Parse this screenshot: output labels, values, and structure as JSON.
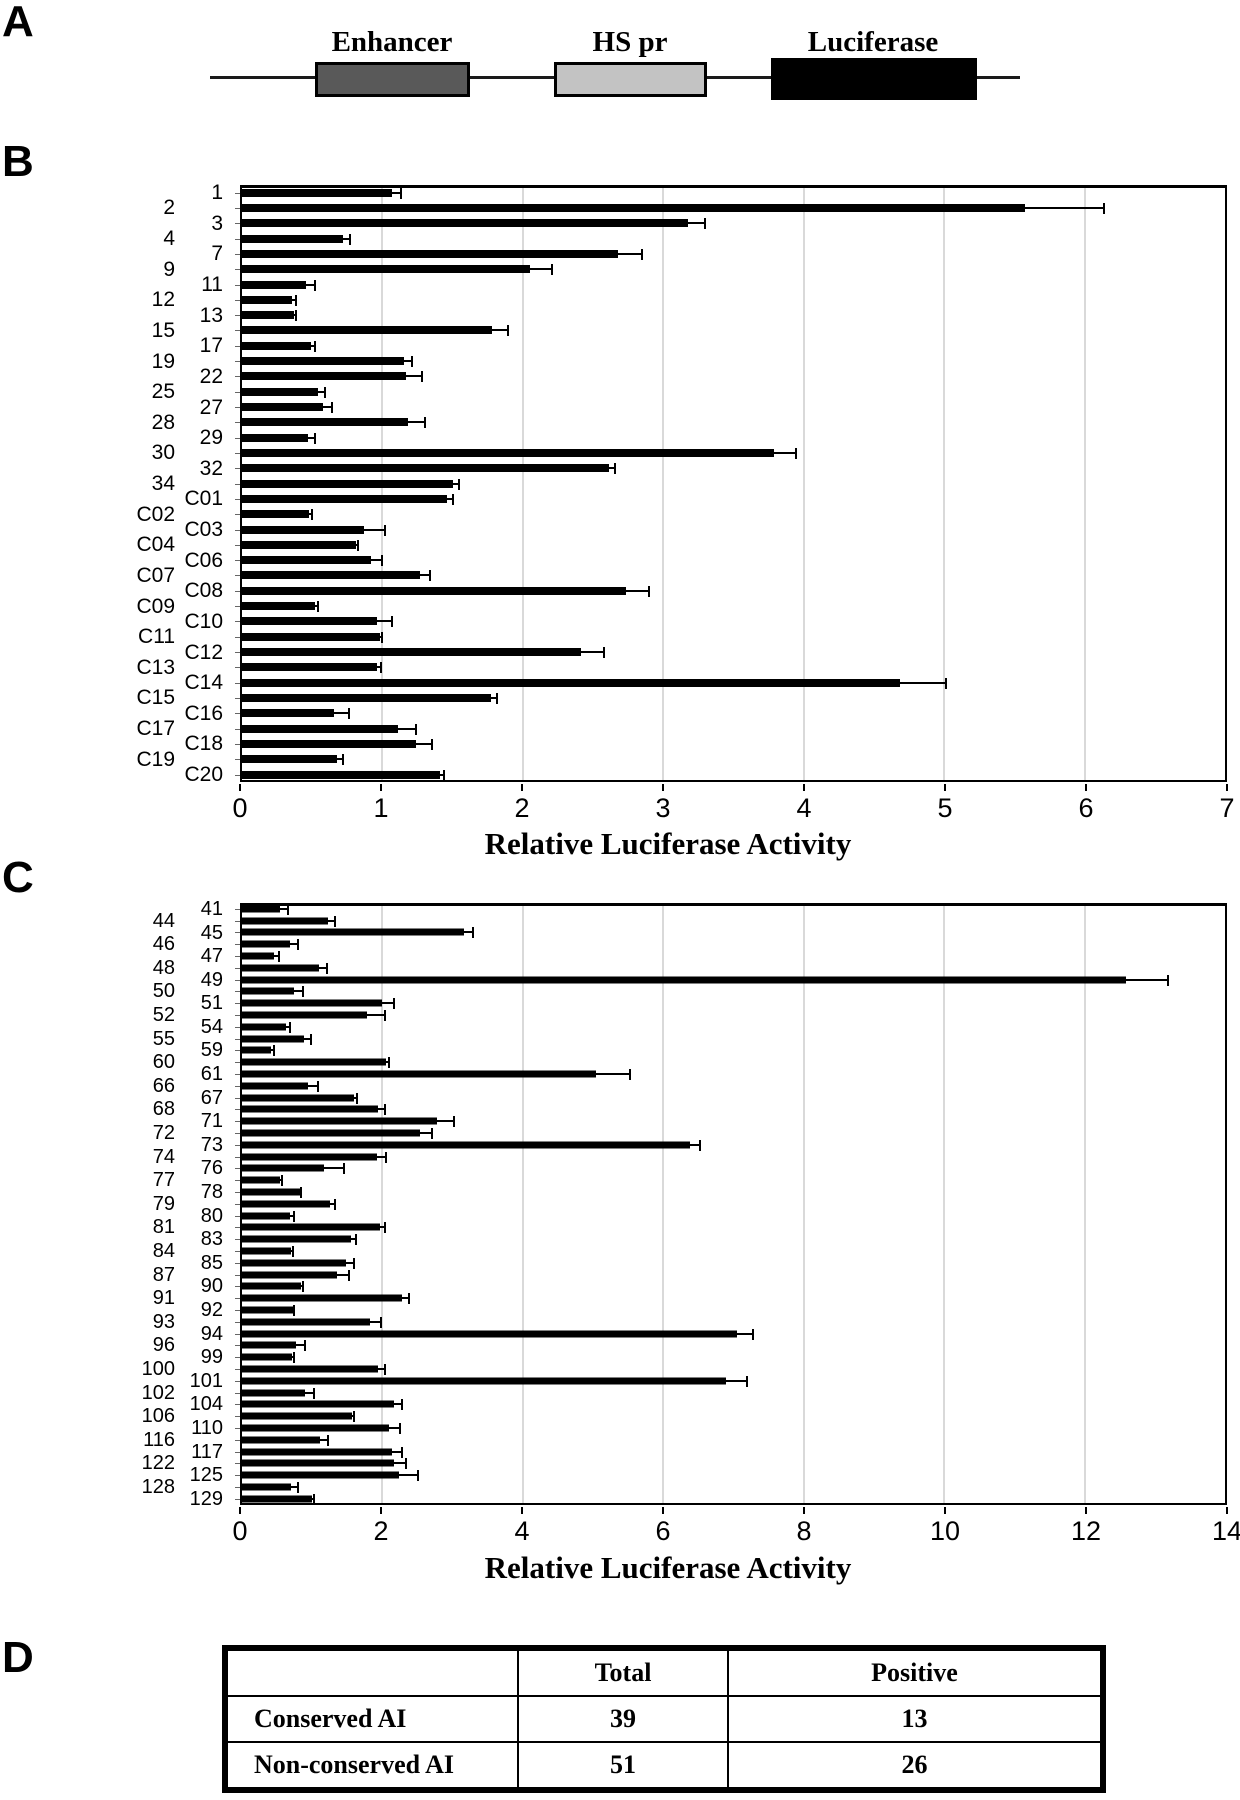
{
  "figure": {
    "panel_a": {
      "label": "A",
      "construct": {
        "segments": [
          {
            "label": "Enhancer",
            "fill": "#595959"
          },
          {
            "label": "HS pr",
            "fill": "#c3c3c3"
          },
          {
            "label": "Luciferase",
            "fill": "#000000"
          }
        ]
      }
    },
    "panel_b": {
      "label": "B"
    },
    "panel_c": {
      "label": "C"
    },
    "panel_d": {
      "label": "D",
      "table": {
        "col_headers": [
          "",
          "Total",
          "Positive"
        ],
        "rows": [
          {
            "name": "Conserved AI",
            "total": "39",
            "positive": "13"
          },
          {
            "name": "Non-conserved AI",
            "total": "51",
            "positive": "26"
          }
        ]
      }
    }
  },
  "chart_data": [
    {
      "type": "bar",
      "orientation": "horizontal",
      "panel": "B",
      "title": "",
      "xlabel": "Relative Luciferase Activity",
      "ylabel": "",
      "xlim": [
        0,
        7
      ],
      "xticks": [
        0,
        1,
        2,
        3,
        4,
        5,
        6,
        7
      ],
      "grid": true,
      "bar_color": "#000000",
      "categories": [
        "1",
        "2",
        "3",
        "4",
        "7",
        "9",
        "11",
        "12",
        "13",
        "15",
        "17",
        "19",
        "22",
        "25",
        "27",
        "28",
        "29",
        "30",
        "32",
        "34",
        "C01",
        "C02",
        "C03",
        "C04",
        "C06",
        "C07",
        "C08",
        "C09",
        "C10",
        "C11",
        "C12",
        "C13",
        "C14",
        "C15",
        "C16",
        "C17",
        "C18",
        "C19",
        "C20"
      ],
      "values": [
        1.08,
        5.57,
        3.18,
        0.73,
        2.68,
        2.06,
        0.47,
        0.37,
        0.38,
        1.79,
        0.5,
        1.16,
        1.18,
        0.55,
        0.59,
        1.19,
        0.48,
        3.79,
        2.62,
        1.51,
        1.47,
        0.49,
        0.88,
        0.82,
        0.93,
        1.28,
        2.74,
        0.53,
        0.97,
        0.99,
        2.42,
        0.97,
        4.68,
        1.78,
        0.67,
        1.12,
        1.25,
        0.69,
        1.42
      ],
      "errors": [
        0.06,
        0.56,
        0.12,
        0.05,
        0.17,
        0.15,
        0.06,
        0.03,
        0.02,
        0.11,
        0.03,
        0.06,
        0.11,
        0.05,
        0.06,
        0.12,
        0.05,
        0.15,
        0.04,
        0.04,
        0.04,
        0.02,
        0.15,
        0.02,
        0.08,
        0.07,
        0.16,
        0.02,
        0.11,
        0.02,
        0.16,
        0.03,
        0.33,
        0.04,
        0.1,
        0.13,
        0.11,
        0.04,
        0.03
      ]
    },
    {
      "type": "bar",
      "orientation": "horizontal",
      "panel": "C",
      "title": "",
      "xlabel": "Relative Luciferase Activity",
      "ylabel": "",
      "xlim": [
        0,
        14
      ],
      "xticks": [
        0,
        2,
        4,
        6,
        8,
        10,
        12,
        14
      ],
      "grid": true,
      "bar_color": "#000000",
      "categories": [
        "41",
        "44",
        "45",
        "46",
        "47",
        "48",
        "49",
        "50",
        "51",
        "52",
        "54",
        "55",
        "59",
        "60",
        "61",
        "66",
        "67",
        "68",
        "71",
        "72",
        "73",
        "74",
        "76",
        "77",
        "78",
        "79",
        "80",
        "81",
        "83",
        "84",
        "85",
        "87",
        "90",
        "91",
        "92",
        "93",
        "94",
        "96",
        "99",
        "100",
        "101",
        "102",
        "104",
        "106",
        "110",
        "116",
        "117",
        "122",
        "125",
        "128",
        "129"
      ],
      "values": [
        0.57,
        1.25,
        3.18,
        0.71,
        0.48,
        1.12,
        12.57,
        0.77,
        2.01,
        1.8,
        0.65,
        0.91,
        0.44,
        2.07,
        5.05,
        0.96,
        1.62,
        1.96,
        2.8,
        2.55,
        6.39,
        1.94,
        1.19,
        0.57,
        0.85,
        1.28,
        0.71,
        1.98,
        1.57,
        0.73,
        1.5,
        1.37,
        0.87,
        2.3,
        0.75,
        1.85,
        7.05,
        0.8,
        0.74,
        1.96,
        6.89,
        0.92,
        2.19,
        1.59,
        2.12,
        1.14,
        2.16,
        2.19,
        2.25,
        0.73,
        1.02
      ],
      "errors": [
        0.11,
        0.1,
        0.12,
        0.11,
        0.07,
        0.11,
        0.6,
        0.12,
        0.18,
        0.25,
        0.06,
        0.1,
        0.04,
        0.05,
        0.48,
        0.14,
        0.04,
        0.09,
        0.23,
        0.17,
        0.14,
        0.13,
        0.29,
        0.03,
        0.02,
        0.07,
        0.06,
        0.07,
        0.08,
        0.02,
        0.12,
        0.18,
        0.03,
        0.1,
        0.02,
        0.15,
        0.23,
        0.12,
        0.02,
        0.09,
        0.3,
        0.13,
        0.11,
        0.03,
        0.15,
        0.11,
        0.14,
        0.17,
        0.27,
        0.09,
        0.03
      ]
    }
  ]
}
